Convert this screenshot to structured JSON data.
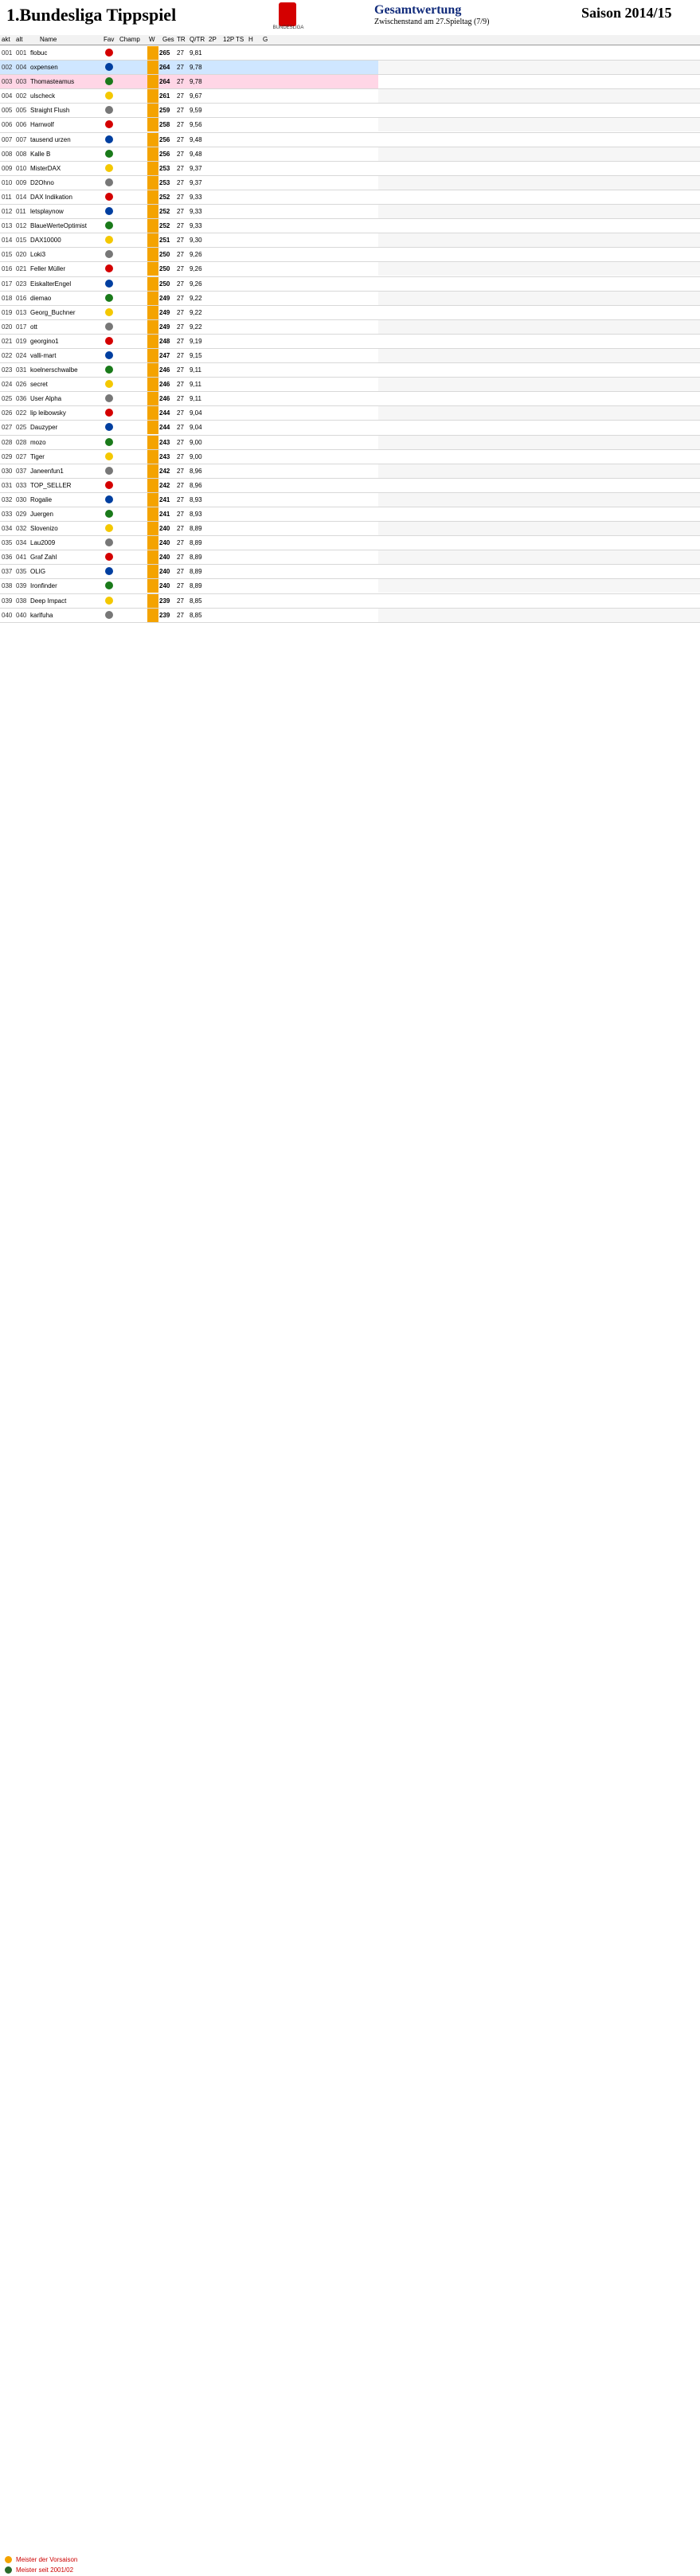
{
  "header": {
    "title": "1.Bundesliga Tippspiel",
    "subtitle": "Gesamtwertung",
    "subtitle2": "Zwischenstand am 27.Spieltag (7/9)",
    "season": "Saison 2014/15",
    "logo_label": "BUNDESLIGA"
  },
  "columns": [
    "akt",
    "alt",
    "Name",
    "Fav",
    "Champ",
    "W",
    "Ges",
    "TR",
    "Q/TR",
    "2P",
    "12P",
    "TS",
    "H",
    "G"
  ],
  "rows": [
    {
      "pl": "001",
      "nr": "001",
      "name": "flobuc",
      "g": "265",
      "tr": "27",
      "dm": "9,81"
    },
    {
      "pl": "002",
      "nr": "004",
      "name": "oxpensen",
      "g": "264",
      "tr": "27",
      "dm": "9,78",
      "hl": "hl"
    },
    {
      "pl": "003",
      "nr": "003",
      "name": "Thomasteamus",
      "g": "264",
      "tr": "27",
      "dm": "9,78",
      "hl": "hl2"
    },
    {
      "pl": "004",
      "nr": "002",
      "name": "ulscheck",
      "g": "261",
      "tr": "27",
      "dm": "9,67"
    },
    {
      "pl": "005",
      "nr": "005",
      "name": "Straight Flush",
      "g": "259",
      "tr": "27",
      "dm": "9,59"
    },
    {
      "pl": "006",
      "nr": "006",
      "name": "Harrwolf",
      "g": "258",
      "tr": "27",
      "dm": "9,56"
    },
    {
      "pl": "007",
      "nr": "007",
      "name": "tausend urzen",
      "g": "256",
      "tr": "27",
      "dm": "9,48"
    },
    {
      "pl": "008",
      "nr": "008",
      "name": "Kalle B",
      "g": "256",
      "tr": "27",
      "dm": "9,48"
    },
    {
      "pl": "009",
      "nr": "010",
      "name": "MisterDAX",
      "g": "253",
      "tr": "27",
      "dm": "9,37"
    },
    {
      "pl": "010",
      "nr": "009",
      "name": "D2Ohno",
      "g": "253",
      "tr": "27",
      "dm": "9,37"
    },
    {
      "pl": "011",
      "nr": "014",
      "name": "DAX Indikation",
      "g": "252",
      "tr": "27",
      "dm": "9,33"
    },
    {
      "pl": "012",
      "nr": "011",
      "name": "letsplaynow",
      "g": "252",
      "tr": "27",
      "dm": "9,33"
    },
    {
      "pl": "013",
      "nr": "012",
      "name": "BlaueWerteOptimist",
      "g": "252",
      "tr": "27",
      "dm": "9,33"
    },
    {
      "pl": "014",
      "nr": "015",
      "name": "DAX10000",
      "g": "251",
      "tr": "27",
      "dm": "9,30"
    },
    {
      "pl": "015",
      "nr": "020",
      "name": "Loki3",
      "g": "250",
      "tr": "27",
      "dm": "9,26"
    },
    {
      "pl": "016",
      "nr": "021",
      "name": "Feller Müller",
      "g": "250",
      "tr": "27",
      "dm": "9,26"
    },
    {
      "pl": "017",
      "nr": "023",
      "name": "EiskalterEngel",
      "g": "250",
      "tr": "27",
      "dm": "9,26"
    },
    {
      "pl": "018",
      "nr": "016",
      "name": "diemao",
      "g": "249",
      "tr": "27",
      "dm": "9,22"
    },
    {
      "pl": "019",
      "nr": "013",
      "name": "Georg_Buchner",
      "g": "249",
      "tr": "27",
      "dm": "9,22"
    },
    {
      "pl": "020",
      "nr": "017",
      "name": "ott",
      "g": "249",
      "tr": "27",
      "dm": "9,22"
    },
    {
      "pl": "021",
      "nr": "019",
      "name": "georgino1",
      "g": "248",
      "tr": "27",
      "dm": "9,19"
    },
    {
      "pl": "022",
      "nr": "024",
      "name": "valli-mart",
      "g": "247",
      "tr": "27",
      "dm": "9,15"
    },
    {
      "pl": "023",
      "nr": "031",
      "name": "koelnerschwalbe",
      "g": "246",
      "tr": "27",
      "dm": "9,11"
    },
    {
      "pl": "024",
      "nr": "026",
      "name": "secret",
      "g": "246",
      "tr": "27",
      "dm": "9,11"
    },
    {
      "pl": "025",
      "nr": "036",
      "name": "User Alpha",
      "g": "246",
      "tr": "27",
      "dm": "9,11"
    },
    {
      "pl": "026",
      "nr": "022",
      "name": "lip leibowsky",
      "g": "244",
      "tr": "27",
      "dm": "9,04"
    },
    {
      "pl": "027",
      "nr": "025",
      "name": "Dauzyper",
      "g": "244",
      "tr": "27",
      "dm": "9,04"
    },
    {
      "pl": "028",
      "nr": "028",
      "name": "mozo",
      "g": "243",
      "tr": "27",
      "dm": "9,00"
    },
    {
      "pl": "029",
      "nr": "027",
      "name": "Tiger",
      "g": "243",
      "tr": "27",
      "dm": "9,00"
    },
    {
      "pl": "030",
      "nr": "037",
      "name": "Janeenfun1",
      "g": "242",
      "tr": "27",
      "dm": "8,96"
    },
    {
      "pl": "031",
      "nr": "033",
      "name": "TOP_SELLER",
      "g": "242",
      "tr": "27",
      "dm": "8,96"
    },
    {
      "pl": "032",
      "nr": "030",
      "name": "Rogalie",
      "g": "241",
      "tr": "27",
      "dm": "8,93"
    },
    {
      "pl": "033",
      "nr": "029",
      "name": "Juergen",
      "g": "241",
      "tr": "27",
      "dm": "8,93"
    },
    {
      "pl": "034",
      "nr": "032",
      "name": "Slovenizo",
      "g": "240",
      "tr": "27",
      "dm": "8,89"
    },
    {
      "pl": "035",
      "nr": "034",
      "name": "Lau2009",
      "g": "240",
      "tr": "27",
      "dm": "8,89"
    },
    {
      "pl": "036",
      "nr": "041",
      "name": "Graf Zahl",
      "g": "240",
      "tr": "27",
      "dm": "8,89"
    },
    {
      "pl": "037",
      "nr": "035",
      "name": "OLIG",
      "g": "240",
      "tr": "27",
      "dm": "8,89"
    },
    {
      "pl": "038",
      "nr": "039",
      "name": "Ironfinder",
      "g": "240",
      "tr": "27",
      "dm": "8,89"
    },
    {
      "pl": "039",
      "nr": "038",
      "name": "Deep Impact",
      "g": "239",
      "tr": "27",
      "dm": "8,85"
    },
    {
      "pl": "040",
      "nr": "040",
      "name": "karlfuha",
      "g": "239",
      "tr": "27",
      "dm": "8,85"
    }
  ],
  "footer": {
    "legend_champ": "Meister der Vorsaison",
    "legend_star": "Meister seit 2001/02"
  },
  "colors": {
    "accent": "#f4a300",
    "highlight": "#cfe6ff",
    "pink": "#ffd6e6"
  }
}
